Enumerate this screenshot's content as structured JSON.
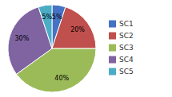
{
  "chart_data": {
    "type": "pie",
    "categories": [
      "SC1",
      "SC2",
      "SC3",
      "SC4",
      "SC5"
    ],
    "values": [
      5,
      20,
      40,
      30,
      5
    ],
    "value_labels": [
      "5%",
      "20%",
      "40%",
      "30%",
      "5%"
    ],
    "colors": [
      "#4472C4",
      "#C0504D",
      "#9BBB59",
      "#8064A2",
      "#4BACC6"
    ],
    "data_labels": true,
    "legend": "right"
  }
}
